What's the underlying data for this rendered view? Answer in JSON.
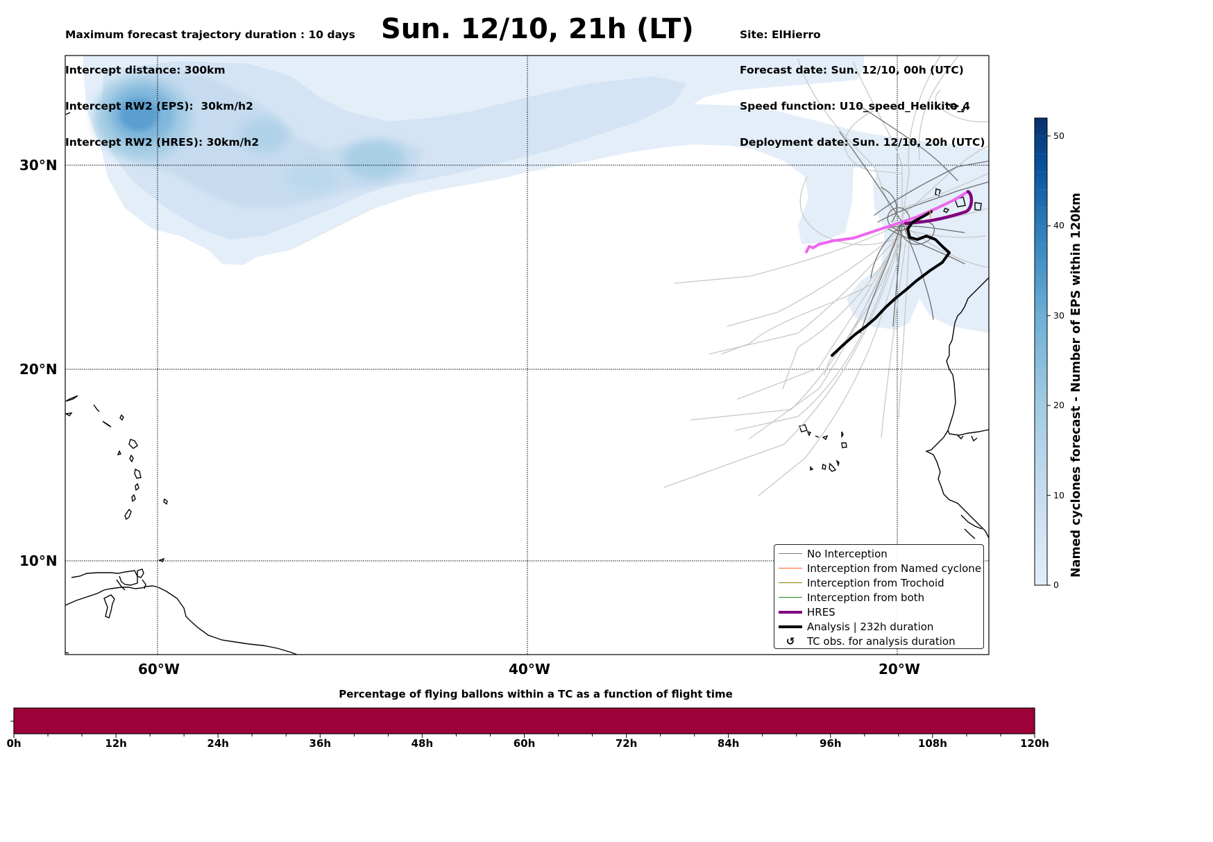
{
  "header_left": {
    "max_duration": "Maximum forecast trajectory duration : 10 days",
    "intercept_distance": "Intercept distance: 300km",
    "intercept_rw2_eps": "Intercept RW2 (EPS):  30km/h2",
    "intercept_rw2_hres": "Intercept RW2 (HRES): 30km/h2"
  },
  "title": "Sun. 12/10, 21h (LT)",
  "header_right": {
    "site": "Site: ElHierro",
    "forecast_date": "Forecast date: Sun. 12/10, 00h (UTC)",
    "speed_function": "Speed function: U10_speed_Helikite_4",
    "deployment_date": "Deployment date: Sun. 12/10, 20h (UTC)"
  },
  "map": {
    "lon_range": [
      -65,
      -15
    ],
    "lat_range": [
      5.3,
      35.3
    ],
    "lat_ticks": [
      {
        "value": 30,
        "label": "30°N"
      },
      {
        "value": 20,
        "label": "20°N"
      },
      {
        "value": 10,
        "label": "10°N"
      }
    ],
    "lon_ticks": [
      {
        "value": -60,
        "label": "60°W"
      },
      {
        "value": -40,
        "label": "40°W"
      },
      {
        "value": -20,
        "label": "20°W"
      }
    ],
    "colors": {
      "no_interception": "#808080",
      "named_cyclone": "#ff5a1e",
      "trochoid": "#808000",
      "both": "#1a8a1a",
      "hres": "#800080",
      "hres_light": "#ee66ee",
      "analysis": "#000000",
      "coast": "#000000"
    }
  },
  "legend": {
    "items": [
      {
        "label": "No Interception",
        "symbol": "line-thin",
        "color": "#808080"
      },
      {
        "label": "Interception from Named cyclone",
        "symbol": "line-thin",
        "color": "#ff5a1e"
      },
      {
        "label": "Interception from Trochoid",
        "symbol": "line-thin",
        "color": "#808000"
      },
      {
        "label": "Interception from both",
        "symbol": "line-thin",
        "color": "#1a8a1a"
      },
      {
        "label": "HRES",
        "symbol": "line-thick",
        "color": "#800080"
      },
      {
        "label": "Analysis | 232h duration",
        "symbol": "line-thick",
        "color": "#000000"
      },
      {
        "label": "TC obs. for analysis duration",
        "symbol": "cyclone-glyph",
        "glyph": "↺",
        "color": "#000000"
      }
    ]
  },
  "colorbar": {
    "label": "Named cyclones forecast - Number of EPS within 120km",
    "min": 0,
    "max": 52,
    "ticks": [
      "0",
      "10",
      "20",
      "30",
      "40",
      "50"
    ],
    "colormap": "Blues"
  },
  "flight_bar": {
    "title": "Percentage of flying ballons within a TC as a function of flight time",
    "color": "#9e003a",
    "fraction_filled": 1.0,
    "x_ticks": [
      "0h",
      "12h",
      "24h",
      "36h",
      "48h",
      "60h",
      "72h",
      "84h",
      "96h",
      "108h",
      "120h"
    ]
  }
}
